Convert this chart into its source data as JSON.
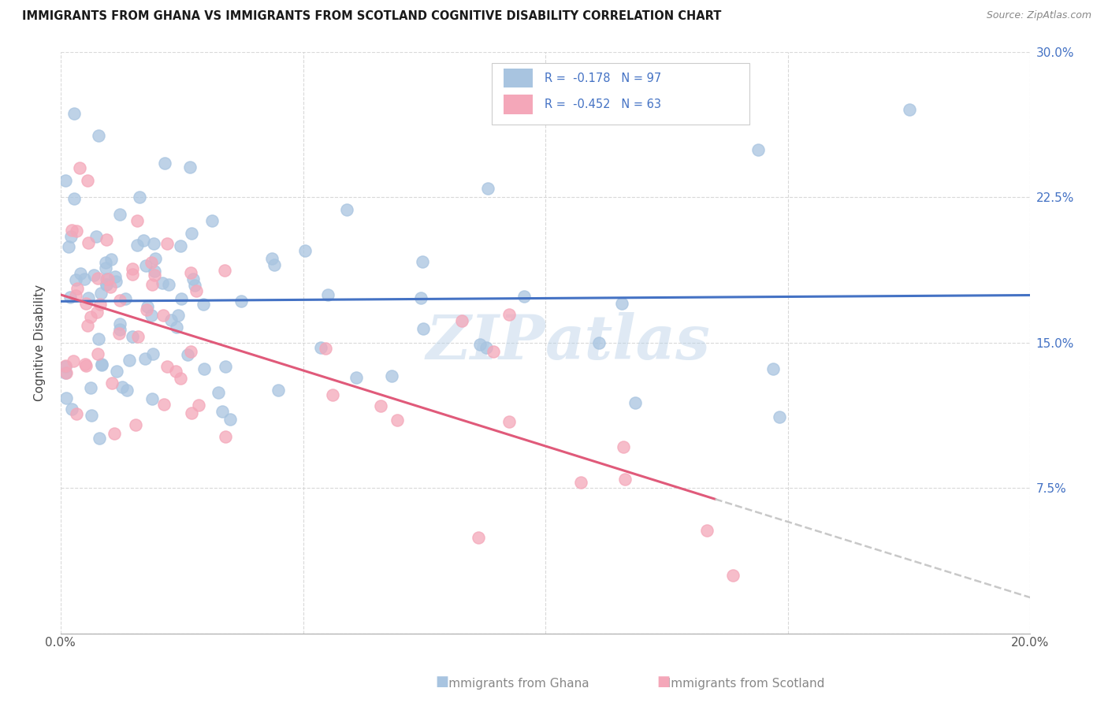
{
  "title": "IMMIGRANTS FROM GHANA VS IMMIGRANTS FROM SCOTLAND COGNITIVE DISABILITY CORRELATION CHART",
  "source": "Source: ZipAtlas.com",
  "ylabel": "Cognitive Disability",
  "xlim": [
    0.0,
    0.2
  ],
  "ylim": [
    0.0,
    0.3
  ],
  "ghana_color": "#a8c4e0",
  "scotland_color": "#f4a7b9",
  "ghana_R": -0.178,
  "ghana_N": 97,
  "scotland_R": -0.452,
  "scotland_N": 63,
  "ghana_line_color": "#4472c4",
  "scotland_line_color": "#e05a7a",
  "trend_extend_color": "#c8c8c8",
  "watermark_zip": "ZIP",
  "watermark_atlas": "atlas",
  "legend_r_color": "#4472c4",
  "legend_n_color": "#4472c4",
  "axis_label_color": "#4472c4",
  "bottom_legend_color": "#888888"
}
